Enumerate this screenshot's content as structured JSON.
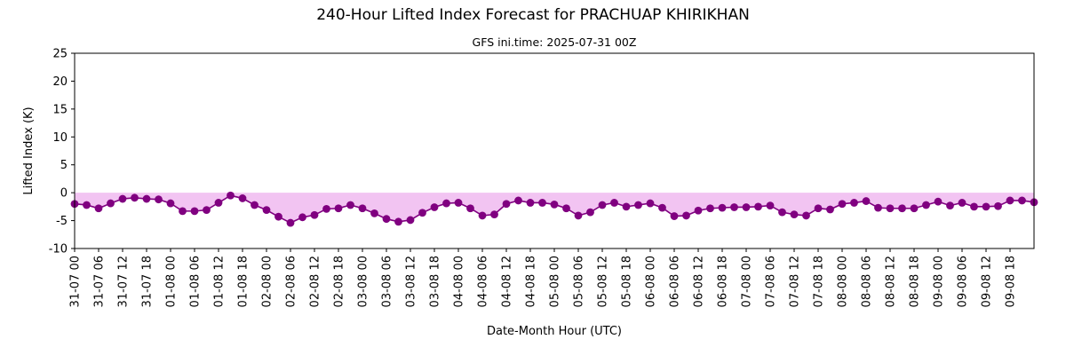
{
  "chart_data": {
    "type": "line",
    "title": "240-Hour Lifted Index Forecast for PRACHUAP KHIRIKHAN",
    "subtitle": "GFS ini.time: 2025-07-31 00Z",
    "xlabel": "Date-Month Hour (UTC)",
    "ylabel": "Lifted Index (K)",
    "ylim": [
      -10,
      25
    ],
    "yticks": [
      -10,
      -5,
      0,
      5,
      10,
      15,
      20,
      25
    ],
    "x_tick_labels": [
      "31-07 00",
      "31-07 06",
      "31-07 12",
      "31-07 18",
      "01-08 00",
      "01-08 06",
      "01-08 12",
      "01-08 18",
      "02-08 00",
      "02-08 06",
      "02-08 12",
      "02-08 18",
      "03-08 00",
      "03-08 06",
      "03-08 12",
      "03-08 18",
      "04-08 00",
      "04-08 06",
      "04-08 12",
      "04-08 18",
      "05-08 00",
      "05-08 06",
      "05-08 12",
      "05-08 18",
      "06-08 00",
      "06-08 06",
      "06-08 12",
      "06-08 18",
      "07-08 00",
      "07-08 06",
      "07-08 12",
      "07-08 18",
      "08-08 00",
      "08-08 06",
      "08-08 12",
      "08-08 18",
      "09-08 00",
      "09-08 06",
      "09-08 12",
      "09-08 18"
    ],
    "x_step_hours": 3,
    "series": [
      {
        "values": [
          -2.0,
          -2.2,
          -2.8,
          -1.9,
          -1.1,
          -0.9,
          -1.1,
          -1.2,
          -1.9,
          -3.3,
          -3.3,
          -3.1,
          -1.8,
          -0.5,
          -1.0,
          -2.2,
          -3.1,
          -4.3,
          -5.4,
          -4.4,
          -4.0,
          -2.9,
          -2.8,
          -2.2,
          -2.8,
          -3.7,
          -4.7,
          -5.2,
          -4.9,
          -3.6,
          -2.6,
          -1.9,
          -1.8,
          -2.8,
          -4.1,
          -3.9,
          -2.0,
          -1.4,
          -1.8,
          -1.8,
          -2.1,
          -2.8,
          -4.1,
          -3.5,
          -2.2,
          -1.8,
          -2.5,
          -2.2,
          -1.9,
          -2.7,
          -4.2,
          -4.1,
          -3.2,
          -2.8,
          -2.7,
          -2.6,
          -2.6,
          -2.5,
          -2.3,
          -3.5,
          -3.9,
          -4.1,
          -2.8,
          -3.0,
          -2.0,
          -1.8,
          -1.5,
          -2.7,
          -2.8,
          -2.8,
          -2.8,
          -2.2,
          -1.6,
          -2.3,
          -1.8,
          -2.5,
          -2.5,
          -2.4,
          -1.4,
          -1.4,
          -1.7
        ],
        "line_color": "#800080",
        "fill_color": "#f2c4f2"
      }
    ],
    "grid": false,
    "legend": "none"
  }
}
